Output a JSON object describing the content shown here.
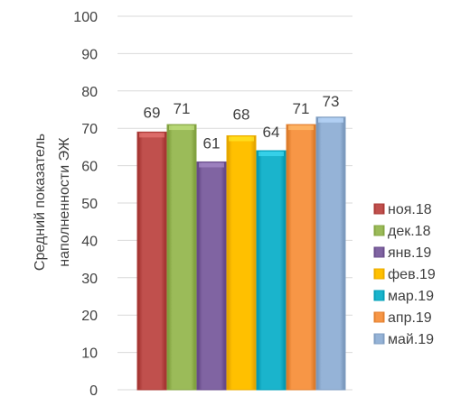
{
  "chart_data": {
    "type": "bar",
    "title": "",
    "ylabel": "Средний показатель наполненности ЭЖ",
    "xlabel": "",
    "ylim": [
      0,
      100
    ],
    "yticks": [
      0,
      10,
      20,
      30,
      40,
      50,
      60,
      70,
      80,
      90,
      100
    ],
    "grid": true,
    "legend_position": "right",
    "series": [
      {
        "name": "ноя.18",
        "value": 69,
        "color": "#c0504d"
      },
      {
        "name": "дек.18",
        "value": 71,
        "color": "#9bbb59"
      },
      {
        "name": "янв.19",
        "value": 61,
        "color": "#8064a2"
      },
      {
        "name": "фев.19",
        "value": 68,
        "color": "#ffc000"
      },
      {
        "name": "мар.19",
        "value": 64,
        "color": "#1ab4cc"
      },
      {
        "name": "апр.19",
        "value": 71,
        "color": "#f79646"
      },
      {
        "name": "май.19",
        "value": 73,
        "color": "#95b3d7"
      }
    ],
    "y_label_lines": [
      "Средний показатель",
      "наполненности ЭЖ"
    ]
  }
}
